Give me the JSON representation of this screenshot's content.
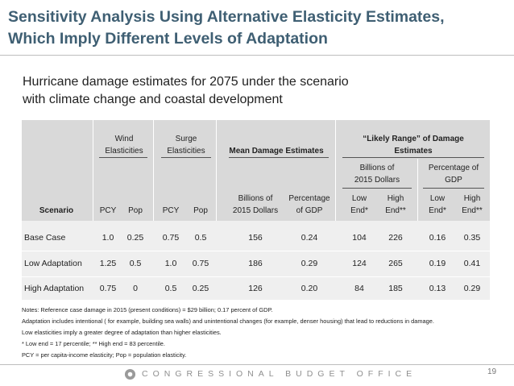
{
  "title": "Sensitivity Analysis Using Alternative Elasticity Estimates, Which Imply Different Levels of Adaptation",
  "title_line1": "Sensitivity Analysis Using Alternative Elasticity Estimates,",
  "title_line2": "Which Imply Different Levels of Adaptation",
  "subtitle_line1": "Hurricane damage estimates for 2075 under the scenario",
  "subtitle_line2": "with climate change and coastal development",
  "table": {
    "groups": {
      "wind_1": "Wind",
      "wind_2": "Elasticities",
      "surge_1": "Surge",
      "surge_2": "Elasticities",
      "mean": "Mean Damage Estimates",
      "likely_1": "“Likely Range” of Damage",
      "likely_2": "Estimates",
      "billions_1": "Billions of",
      "billions_2": "2015 Dollars",
      "pct_1": "Percentage of",
      "pct_2": "GDP"
    },
    "columns": {
      "scenario": "Scenario",
      "wind_pcy": "PCY",
      "wind_pop": "Pop",
      "surge_pcy": "PCY",
      "surge_pop": "Pop",
      "mean_bil_1": "Billions of",
      "mean_bil_2": "2015 Dollars",
      "mean_pct_1": "Percentage",
      "mean_pct_2": "of GDP",
      "bil_low_1": "Low",
      "bil_low_2": "End*",
      "bil_high_1": "High",
      "bil_high_2": "End**",
      "pct_low_1": "Low",
      "pct_low_2": "End*",
      "pct_high_1": "High",
      "pct_high_2": "End**"
    },
    "rows": [
      {
        "scenario": "Base Case",
        "wind_pcy": "1.0",
        "wind_pop": "0.25",
        "surge_pcy": "0.75",
        "surge_pop": "0.5",
        "mean_bil": "156",
        "mean_pct": "0.24",
        "bil_low": "104",
        "bil_high": "226",
        "pct_low": "0.16",
        "pct_high": "0.35"
      },
      {
        "scenario": "Low Adaptation",
        "wind_pcy": "1.25",
        "wind_pop": "0.5",
        "surge_pcy": "1.0",
        "surge_pop": "0.75",
        "mean_bil": "186",
        "mean_pct": "0.29",
        "bil_low": "124",
        "bil_high": "265",
        "pct_low": "0.19",
        "pct_high": "0.41"
      },
      {
        "scenario": "High Adaptation",
        "wind_pcy": "0.75",
        "wind_pop": "0",
        "surge_pcy": "0.5",
        "surge_pop": "0.25",
        "mean_bil": "126",
        "mean_pct": "0.20",
        "bil_low": "84",
        "bil_high": "185",
        "pct_low": "0.13",
        "pct_high": "0.29"
      }
    ]
  },
  "notes": [
    "Notes: Reference case damage in 2015 (present conditions) = $29 billion; 0.17 percent of GDP.",
    "Adaptation includes intentional ( for example, building sea walls) and unintentional changes (for example, denser housing)  that lead to reductions in damage.",
    "Low elasticities imply a greater degree of adaptation than higher elasticities.",
    "* Low end = 17 percentile; ** High end = 83 percentile.",
    "PCY = per capita-income elasticity; Pop = population elasticity."
  ],
  "footer": {
    "org": "CONGRESSIONAL BUDGET OFFICE",
    "page": "19"
  },
  "colors": {
    "title": "#3f5f73",
    "header_bg": "#d9d9d9",
    "body_bg": "#efefef"
  }
}
